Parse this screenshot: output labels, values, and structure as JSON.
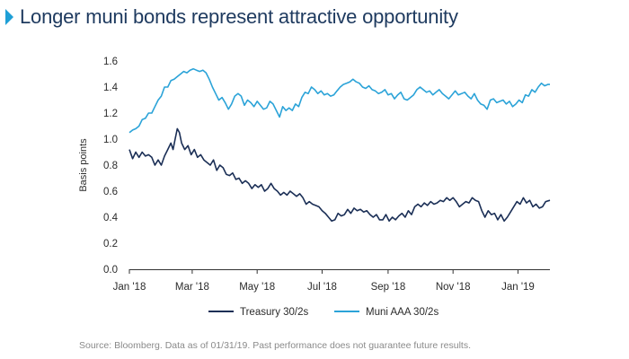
{
  "title": "Longer muni bonds represent attractive opportunity",
  "source": "Source: Bloomberg. Data as of 01/31/19. Past performance does not guarantee future results.",
  "colors": {
    "treasury": "#1b2f56",
    "muni": "#2ba3d8",
    "accent": "#1e9fd6",
    "title": "#1e3a5f"
  },
  "chart_data": {
    "type": "line",
    "title": "Longer muni bonds represent attractive opportunity",
    "xlabel": "",
    "ylabel": "Basis points",
    "ylim": [
      0,
      1.6
    ],
    "yticks": [
      "0.0",
      "0.2",
      "0.4",
      "0.6",
      "0.8",
      "1.0",
      "1.2",
      "1.4",
      "1.6"
    ],
    "xrange_days": [
      0,
      395
    ],
    "xticks": [
      {
        "label": "Jan '18",
        "day": 0
      },
      {
        "label": "Mar '18",
        "day": 59
      },
      {
        "label": "May '18",
        "day": 120
      },
      {
        "label": "Jul '18",
        "day": 181
      },
      {
        "label": "Sep '18",
        "day": 243
      },
      {
        "label": "Nov '18",
        "day": 304
      },
      {
        "label": "Jan '19",
        "day": 365
      }
    ],
    "legend_position": "bottom",
    "series": [
      {
        "name": "Treasury 30/2s",
        "color": "#1b2f56",
        "points": [
          [
            0,
            0.92
          ],
          [
            3,
            0.85
          ],
          [
            6,
            0.9
          ],
          [
            9,
            0.86
          ],
          [
            12,
            0.9
          ],
          [
            15,
            0.87
          ],
          [
            18,
            0.88
          ],
          [
            21,
            0.86
          ],
          [
            24,
            0.8
          ],
          [
            27,
            0.84
          ],
          [
            30,
            0.8
          ],
          [
            33,
            0.87
          ],
          [
            36,
            0.92
          ],
          [
            39,
            0.97
          ],
          [
            41,
            0.92
          ],
          [
            43,
            1.0
          ],
          [
            45,
            1.08
          ],
          [
            47,
            1.05
          ],
          [
            49,
            0.97
          ],
          [
            52,
            0.92
          ],
          [
            55,
            0.95
          ],
          [
            58,
            0.88
          ],
          [
            61,
            0.92
          ],
          [
            64,
            0.86
          ],
          [
            67,
            0.88
          ],
          [
            70,
            0.84
          ],
          [
            73,
            0.82
          ],
          [
            76,
            0.8
          ],
          [
            79,
            0.84
          ],
          [
            82,
            0.76
          ],
          [
            85,
            0.8
          ],
          [
            88,
            0.78
          ],
          [
            91,
            0.73
          ],
          [
            94,
            0.72
          ],
          [
            97,
            0.74
          ],
          [
            100,
            0.69
          ],
          [
            103,
            0.7
          ],
          [
            106,
            0.66
          ],
          [
            109,
            0.68
          ],
          [
            112,
            0.66
          ],
          [
            115,
            0.62
          ],
          [
            118,
            0.65
          ],
          [
            121,
            0.63
          ],
          [
            124,
            0.65
          ],
          [
            127,
            0.6
          ],
          [
            130,
            0.62
          ],
          [
            133,
            0.66
          ],
          [
            136,
            0.62
          ],
          [
            139,
            0.6
          ],
          [
            142,
            0.57
          ],
          [
            145,
            0.59
          ],
          [
            148,
            0.57
          ],
          [
            151,
            0.6
          ],
          [
            154,
            0.58
          ],
          [
            157,
            0.56
          ],
          [
            160,
            0.58
          ],
          [
            163,
            0.55
          ],
          [
            166,
            0.5
          ],
          [
            169,
            0.52
          ],
          [
            172,
            0.5
          ],
          [
            175,
            0.49
          ],
          [
            178,
            0.48
          ],
          [
            181,
            0.45
          ],
          [
            184,
            0.43
          ],
          [
            187,
            0.4
          ],
          [
            190,
            0.37
          ],
          [
            193,
            0.38
          ],
          [
            196,
            0.43
          ],
          [
            199,
            0.41
          ],
          [
            202,
            0.42
          ],
          [
            205,
            0.46
          ],
          [
            208,
            0.43
          ],
          [
            211,
            0.47
          ],
          [
            214,
            0.45
          ],
          [
            217,
            0.46
          ],
          [
            220,
            0.44
          ],
          [
            223,
            0.45
          ],
          [
            226,
            0.42
          ],
          [
            229,
            0.4
          ],
          [
            232,
            0.42
          ],
          [
            235,
            0.38
          ],
          [
            238,
            0.38
          ],
          [
            241,
            0.42
          ],
          [
            244,
            0.37
          ],
          [
            247,
            0.4
          ],
          [
            250,
            0.38
          ],
          [
            253,
            0.41
          ],
          [
            256,
            0.43
          ],
          [
            259,
            0.4
          ],
          [
            262,
            0.45
          ],
          [
            265,
            0.42
          ],
          [
            268,
            0.48
          ],
          [
            271,
            0.5
          ],
          [
            274,
            0.48
          ],
          [
            277,
            0.51
          ],
          [
            280,
            0.49
          ],
          [
            283,
            0.52
          ],
          [
            286,
            0.5
          ],
          [
            289,
            0.51
          ],
          [
            292,
            0.53
          ],
          [
            295,
            0.52
          ],
          [
            298,
            0.55
          ],
          [
            301,
            0.53
          ],
          [
            304,
            0.55
          ],
          [
            307,
            0.52
          ],
          [
            310,
            0.48
          ],
          [
            313,
            0.5
          ],
          [
            316,
            0.52
          ],
          [
            319,
            0.51
          ],
          [
            322,
            0.55
          ],
          [
            325,
            0.53
          ],
          [
            328,
            0.52
          ],
          [
            331,
            0.45
          ],
          [
            334,
            0.4
          ],
          [
            337,
            0.45
          ],
          [
            340,
            0.42
          ],
          [
            343,
            0.43
          ],
          [
            346,
            0.38
          ],
          [
            349,
            0.42
          ],
          [
            352,
            0.37
          ],
          [
            355,
            0.4
          ],
          [
            358,
            0.44
          ],
          [
            361,
            0.48
          ],
          [
            364,
            0.52
          ],
          [
            367,
            0.5
          ],
          [
            370,
            0.55
          ],
          [
            373,
            0.51
          ],
          [
            376,
            0.53
          ],
          [
            379,
            0.48
          ],
          [
            382,
            0.5
          ],
          [
            385,
            0.47
          ],
          [
            388,
            0.48
          ],
          [
            391,
            0.52
          ],
          [
            395,
            0.53
          ]
        ]
      },
      {
        "name": "Muni AAA 30/2s",
        "color": "#2ba3d8",
        "points": [
          [
            0,
            1.05
          ],
          [
            3,
            1.07
          ],
          [
            6,
            1.08
          ],
          [
            9,
            1.1
          ],
          [
            12,
            1.15
          ],
          [
            15,
            1.16
          ],
          [
            18,
            1.2
          ],
          [
            21,
            1.2
          ],
          [
            24,
            1.25
          ],
          [
            27,
            1.3
          ],
          [
            30,
            1.33
          ],
          [
            33,
            1.4
          ],
          [
            36,
            1.4
          ],
          [
            39,
            1.45
          ],
          [
            42,
            1.46
          ],
          [
            45,
            1.48
          ],
          [
            48,
            1.5
          ],
          [
            51,
            1.52
          ],
          [
            54,
            1.51
          ],
          [
            57,
            1.53
          ],
          [
            60,
            1.54
          ],
          [
            63,
            1.53
          ],
          [
            66,
            1.52
          ],
          [
            69,
            1.53
          ],
          [
            72,
            1.51
          ],
          [
            75,
            1.46
          ],
          [
            78,
            1.4
          ],
          [
            81,
            1.35
          ],
          [
            84,
            1.3
          ],
          [
            87,
            1.32
          ],
          [
            90,
            1.28
          ],
          [
            93,
            1.23
          ],
          [
            96,
            1.27
          ],
          [
            99,
            1.33
          ],
          [
            102,
            1.35
          ],
          [
            105,
            1.33
          ],
          [
            108,
            1.26
          ],
          [
            111,
            1.3
          ],
          [
            114,
            1.28
          ],
          [
            117,
            1.25
          ],
          [
            120,
            1.29
          ],
          [
            123,
            1.26
          ],
          [
            126,
            1.23
          ],
          [
            129,
            1.24
          ],
          [
            132,
            1.29
          ],
          [
            135,
            1.27
          ],
          [
            138,
            1.22
          ],
          [
            141,
            1.17
          ],
          [
            144,
            1.25
          ],
          [
            147,
            1.22
          ],
          [
            150,
            1.24
          ],
          [
            153,
            1.22
          ],
          [
            156,
            1.27
          ],
          [
            159,
            1.25
          ],
          [
            162,
            1.32
          ],
          [
            165,
            1.36
          ],
          [
            168,
            1.35
          ],
          [
            171,
            1.4
          ],
          [
            174,
            1.38
          ],
          [
            177,
            1.35
          ],
          [
            180,
            1.37
          ],
          [
            183,
            1.34
          ],
          [
            186,
            1.35
          ],
          [
            189,
            1.33
          ],
          [
            192,
            1.34
          ],
          [
            195,
            1.37
          ],
          [
            198,
            1.4
          ],
          [
            201,
            1.42
          ],
          [
            204,
            1.43
          ],
          [
            207,
            1.44
          ],
          [
            210,
            1.46
          ],
          [
            213,
            1.44
          ],
          [
            216,
            1.43
          ],
          [
            219,
            1.4
          ],
          [
            222,
            1.39
          ],
          [
            225,
            1.41
          ],
          [
            228,
            1.38
          ],
          [
            231,
            1.37
          ],
          [
            234,
            1.35
          ],
          [
            237,
            1.36
          ],
          [
            240,
            1.38
          ],
          [
            243,
            1.34
          ],
          [
            246,
            1.35
          ],
          [
            249,
            1.31
          ],
          [
            252,
            1.34
          ],
          [
            255,
            1.36
          ],
          [
            258,
            1.31
          ],
          [
            261,
            1.3
          ],
          [
            264,
            1.32
          ],
          [
            267,
            1.34
          ],
          [
            270,
            1.38
          ],
          [
            273,
            1.4
          ],
          [
            276,
            1.38
          ],
          [
            279,
            1.36
          ],
          [
            282,
            1.37
          ],
          [
            285,
            1.34
          ],
          [
            288,
            1.36
          ],
          [
            291,
            1.38
          ],
          [
            294,
            1.35
          ],
          [
            297,
            1.33
          ],
          [
            300,
            1.31
          ],
          [
            303,
            1.34
          ],
          [
            306,
            1.37
          ],
          [
            309,
            1.34
          ],
          [
            312,
            1.35
          ],
          [
            315,
            1.36
          ],
          [
            318,
            1.33
          ],
          [
            321,
            1.31
          ],
          [
            324,
            1.35
          ],
          [
            327,
            1.3
          ],
          [
            330,
            1.27
          ],
          [
            333,
            1.26
          ],
          [
            336,
            1.23
          ],
          [
            339,
            1.3
          ],
          [
            342,
            1.31
          ],
          [
            345,
            1.28
          ],
          [
            348,
            1.29
          ],
          [
            351,
            1.3
          ],
          [
            354,
            1.27
          ],
          [
            357,
            1.29
          ],
          [
            360,
            1.25
          ],
          [
            363,
            1.27
          ],
          [
            366,
            1.3
          ],
          [
            369,
            1.28
          ],
          [
            372,
            1.34
          ],
          [
            375,
            1.33
          ],
          [
            378,
            1.38
          ],
          [
            381,
            1.36
          ],
          [
            384,
            1.4
          ],
          [
            387,
            1.43
          ],
          [
            390,
            1.41
          ],
          [
            393,
            1.42
          ],
          [
            395,
            1.42
          ]
        ]
      }
    ]
  }
}
